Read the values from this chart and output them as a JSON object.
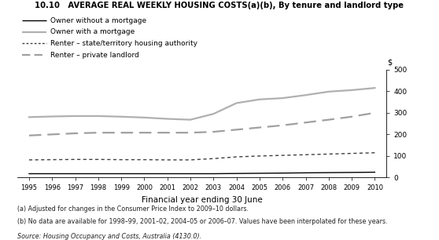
{
  "title": "10.10   AVERAGE REAL WEEKLY HOUSING COSTS(a)(b), By tenure and landlord type",
  "xlabel": "Financial year ending 30 June",
  "ylabel": "$",
  "years": [
    1995,
    1996,
    1997,
    1998,
    1999,
    2000,
    2001,
    2002,
    2003,
    2004,
    2005,
    2006,
    2007,
    2008,
    2009,
    2010
  ],
  "owner_no_mortgage": [
    18,
    18,
    18,
    18,
    18,
    18,
    18,
    18,
    18,
    19,
    20,
    21,
    22,
    23,
    24,
    25
  ],
  "owner_with_mortgage": [
    280,
    283,
    285,
    285,
    282,
    278,
    272,
    268,
    295,
    345,
    362,
    368,
    382,
    398,
    405,
    415
  ],
  "renter_state": [
    82,
    83,
    84,
    84,
    83,
    83,
    82,
    82,
    88,
    96,
    100,
    103,
    106,
    109,
    112,
    115
  ],
  "renter_private": [
    195,
    200,
    205,
    208,
    208,
    208,
    208,
    208,
    212,
    222,
    232,
    242,
    255,
    268,
    282,
    300
  ],
  "ylim": [
    0,
    500
  ],
  "yticks": [
    0,
    100,
    200,
    300,
    400,
    500
  ],
  "color_owner_no_mortgage": "#000000",
  "color_owner_with_mortgage": "#b0b0b0",
  "color_renter_state": "#404040",
  "color_renter_private": "#a0a0a0",
  "footnote1": "(a) Adjusted for changes in the Consumer Price Index to 2009–10 dollars.",
  "footnote2": "(b) No data are available for 1998–99, 2001–02, 2004–05 or 2006–07. Values have been interpolated for these years.",
  "source": "Source: Housing Occupancy and Costs, Australia (4130.0)."
}
